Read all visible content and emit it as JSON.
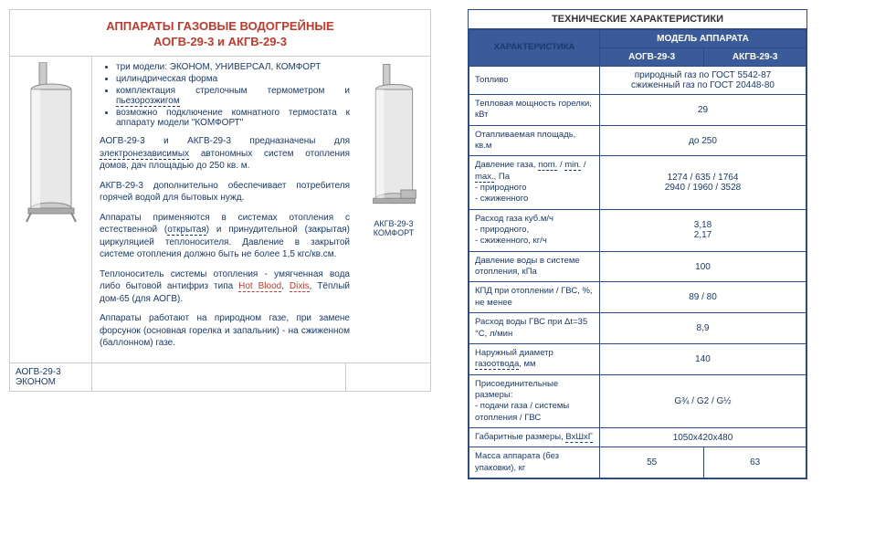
{
  "left": {
    "title": "АППАРАТЫ ГАЗОВЫЕ ВОДОГРЕЙНЫЕ",
    "subtitle": "АОГВ-29-3 и АКГВ-29-3",
    "bullets": [
      "три модели: ЭКОНОМ, УНИВЕРСАЛ, КОМФОРТ",
      "цилиндрическая форма",
      "комплектация стрелочным термометром и",
      "пьезорозжигом",
      "возможно подключение комнатного термостата к аппарату модели \"КОМФОРТ\""
    ],
    "p1a": "АОГВ-29-3 и АКГВ-29-3 предназначены для ",
    "p1b": "электронезависимых",
    "p1c": " автономных систем отопления домов, дач площадью до 250 кв. м.",
    "p2": "АКГВ-29-3 дополнительно обеспечивает потребителя горячей водой для бытовых нужд.",
    "p3a": "Аппараты применяются в системах отопления с естественной (",
    "p3b": "открытая",
    "p3c": ") и принудительной (закрытая) циркуляцией теплоносителя. Давление в закрытой системе отопления должно быть не более 1,5 кгс/кв.см.",
    "p4a": "Теплоноситель системы отопления - умягченная вода либо бытовой антифриз типа ",
    "p4b": "Hot Blood",
    "p4c": ", ",
    "p4d": "Dixis",
    "p4e": ", Тёплый дом-65 (для АОГВ).",
    "p5": "Аппараты работают на природном газе, при замене форсунок (основная горелка и запальник) - на сжиженном (баллонном) газе.",
    "caption_left": "АОГВ-29-3 ЭКОНОМ",
    "caption_right": "АКГВ-29-3 КОМФОРТ"
  },
  "right": {
    "title": "ТЕХНИЧЕСКИЕ ХАРАКТЕРИСТИКИ",
    "header_param": "ХАРАКТЕРИСТИКА",
    "header_model": "МОДЕЛЬ АППАРАТА",
    "model1": "АОГВ-29-3",
    "model2": "АКГВ-29-3",
    "rows": [
      {
        "param": "Топливо",
        "val": "природный газ по ГОСТ 5542-87\nсжиженный газ по ГОСТ 20448-80",
        "span": true
      },
      {
        "param": "Тепловая мощность горелки, кВт",
        "val": "29",
        "span": true
      },
      {
        "param": "Отапливаемая площадь, кв.м",
        "val": "до 250",
        "span": true
      },
      {
        "param": "Давление газа, nom. / min. / max., Па\n- природного\n- сжиженного",
        "val": "1274 / 635 / 1764\n2940 / 1960 / 3528",
        "span": true,
        "dashparam": true
      },
      {
        "param": "Расход газа куб.м/ч\n- природного,\n- сжиженного, кг/ч",
        "val": "3,18\n2,17",
        "span": true
      },
      {
        "param": "Давление воды в системе отопления, кПа",
        "val": "100",
        "span": true
      },
      {
        "param": "КПД при отоплении / ГВС, %, не менее",
        "val": "89 / 80",
        "span": true
      },
      {
        "param": "Расход воды ГВС при Δt=35 °C, л/мин",
        "val": "8,9",
        "span": true
      },
      {
        "param": "Наружный диаметр газоотвода, мм",
        "val": "140",
        "span": true,
        "dashparam2": true
      },
      {
        "param": "Присоединительные размеры:\n- подачи газа / системы отопления / ГВС",
        "val": "G¾ / G2 / G½",
        "span": true
      },
      {
        "param": "Габаритные размеры, ВхШхГ",
        "val": "1050х420х480",
        "span": true,
        "dashparam3": true
      },
      {
        "param": "Масса аппарата (без упаковки), кг",
        "val1": "55",
        "val2": "63",
        "span": false
      }
    ]
  },
  "colors": {
    "heater_body": "#e8e8e8",
    "heater_outline": "#888",
    "heater_dark": "#666"
  }
}
